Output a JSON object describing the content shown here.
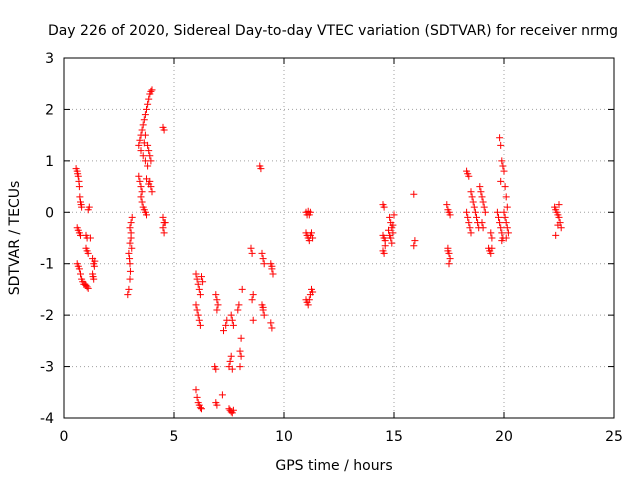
{
  "chart_data": {
    "type": "scatter",
    "title": "Day 226 of 2020, Sidereal Day-to-day VTEC variation (SDTVAR) for receiver nrmg",
    "xlabel": "GPS time / hours",
    "ylabel": "SDTVAR / TECUs",
    "xlim": [
      0,
      25
    ],
    "ylim": [
      -4,
      3
    ],
    "xticks": [
      0,
      5,
      10,
      15,
      20,
      25
    ],
    "yticks": [
      -4,
      -3,
      -2,
      -1,
      0,
      1,
      2,
      3
    ],
    "xtick_labels": [
      "0",
      "5",
      "10",
      "15",
      "20",
      "25"
    ],
    "ytick_labels": [
      "-4",
      "-3",
      "-2",
      "-1",
      "0",
      "1",
      "2",
      "3"
    ],
    "grid": true,
    "marker": "+",
    "color": "#ff0000",
    "series": [
      {
        "name": "SDTVAR",
        "points": [
          [
            0.55,
            0.85
          ],
          [
            0.6,
            0.8
          ],
          [
            0.62,
            0.75
          ],
          [
            0.65,
            0.7
          ],
          [
            0.68,
            0.6
          ],
          [
            0.7,
            0.5
          ],
          [
            0.72,
            0.3
          ],
          [
            0.75,
            0.2
          ],
          [
            0.78,
            0.15
          ],
          [
            0.8,
            0.1
          ],
          [
            0.6,
            -0.3
          ],
          [
            0.65,
            -0.35
          ],
          [
            0.7,
            -0.4
          ],
          [
            0.75,
            -0.45
          ],
          [
            0.6,
            -1.0
          ],
          [
            0.65,
            -1.05
          ],
          [
            0.7,
            -1.1
          ],
          [
            0.75,
            -1.2
          ],
          [
            0.8,
            -1.3
          ],
          [
            0.85,
            -1.35
          ],
          [
            0.9,
            -1.4
          ],
          [
            0.95,
            -1.4
          ],
          [
            1.0,
            -1.42
          ],
          [
            1.05,
            -1.45
          ],
          [
            1.1,
            -1.48
          ],
          [
            1.0,
            -0.7
          ],
          [
            1.05,
            -0.75
          ],
          [
            1.1,
            -0.8
          ],
          [
            1.0,
            -0.45
          ],
          [
            1.05,
            -0.5
          ],
          [
            1.1,
            0.05
          ],
          [
            1.15,
            0.1
          ],
          [
            1.2,
            -0.5
          ],
          [
            1.3,
            -0.9
          ],
          [
            1.35,
            -1.0
          ],
          [
            1.3,
            -1.2
          ],
          [
            1.35,
            -1.3
          ],
          [
            1.4,
            -0.95
          ],
          [
            1.38,
            -1.05
          ],
          [
            1.32,
            -1.25
          ],
          [
            2.9,
            -1.6
          ],
          [
            2.95,
            -1.5
          ],
          [
            3.0,
            -1.3
          ],
          [
            3.0,
            -1.0
          ],
          [
            2.95,
            -0.8
          ],
          [
            3.0,
            -0.6
          ],
          [
            3.05,
            -0.5
          ],
          [
            3.0,
            -0.3
          ],
          [
            3.05,
            -0.2
          ],
          [
            3.1,
            -0.1
          ],
          [
            3.05,
            -0.4
          ],
          [
            2.98,
            -0.9
          ],
          [
            3.08,
            -0.7
          ],
          [
            3.02,
            -1.15
          ],
          [
            3.4,
            0.7
          ],
          [
            3.45,
            0.6
          ],
          [
            3.5,
            0.5
          ],
          [
            3.55,
            0.4
          ],
          [
            3.5,
            0.3
          ],
          [
            3.55,
            0.2
          ],
          [
            3.6,
            0.1
          ],
          [
            3.65,
            0.05
          ],
          [
            3.7,
            0.0
          ],
          [
            3.75,
            -0.05
          ],
          [
            3.4,
            1.3
          ],
          [
            3.45,
            1.4
          ],
          [
            3.5,
            1.5
          ],
          [
            3.55,
            1.6
          ],
          [
            3.6,
            1.7
          ],
          [
            3.65,
            1.8
          ],
          [
            3.5,
            1.2
          ],
          [
            3.6,
            1.1
          ],
          [
            3.7,
            1.0
          ],
          [
            3.8,
            0.9
          ],
          [
            3.75,
            2.0
          ],
          [
            3.8,
            2.1
          ],
          [
            3.85,
            2.2
          ],
          [
            3.9,
            2.3
          ],
          [
            3.95,
            2.35
          ],
          [
            4.0,
            2.38
          ],
          [
            3.7,
            1.9
          ],
          [
            3.8,
            1.3
          ],
          [
            3.85,
            1.2
          ],
          [
            3.9,
            1.1
          ],
          [
            3.95,
            1.0
          ],
          [
            3.9,
            0.6
          ],
          [
            3.95,
            0.5
          ],
          [
            4.0,
            0.4
          ],
          [
            3.85,
            0.55
          ],
          [
            3.75,
            0.65
          ],
          [
            3.7,
            1.5
          ],
          [
            3.65,
            1.35
          ],
          [
            4.5,
            1.65
          ],
          [
            4.55,
            1.6
          ],
          [
            4.5,
            -0.1
          ],
          [
            4.55,
            -0.2
          ],
          [
            4.5,
            -0.3
          ],
          [
            4.55,
            -0.4
          ],
          [
            4.6,
            -0.2
          ],
          [
            6.0,
            -1.2
          ],
          [
            6.05,
            -1.3
          ],
          [
            6.1,
            -1.4
          ],
          [
            6.15,
            -1.5
          ],
          [
            6.2,
            -1.6
          ],
          [
            6.0,
            -1.8
          ],
          [
            6.05,
            -1.9
          ],
          [
            6.1,
            -2.0
          ],
          [
            6.15,
            -2.1
          ],
          [
            6.2,
            -2.2
          ],
          [
            6.25,
            -1.25
          ],
          [
            6.3,
            -1.35
          ],
          [
            6.0,
            -3.45
          ],
          [
            6.05,
            -3.6
          ],
          [
            6.1,
            -3.7
          ],
          [
            6.15,
            -3.75
          ],
          [
            6.2,
            -3.8
          ],
          [
            6.25,
            -3.82
          ],
          [
            6.9,
            -1.6
          ],
          [
            6.95,
            -1.7
          ],
          [
            7.0,
            -1.8
          ],
          [
            6.95,
            -1.9
          ],
          [
            6.85,
            -3.0
          ],
          [
            6.9,
            -3.05
          ],
          [
            6.9,
            -3.7
          ],
          [
            6.95,
            -3.75
          ],
          [
            7.2,
            -3.55
          ],
          [
            7.25,
            -2.3
          ],
          [
            7.35,
            -2.2
          ],
          [
            7.4,
            -2.1
          ],
          [
            7.5,
            -3.0
          ],
          [
            7.55,
            -2.9
          ],
          [
            7.6,
            -2.8
          ],
          [
            7.65,
            -3.05
          ],
          [
            7.5,
            -3.82
          ],
          [
            7.55,
            -3.85
          ],
          [
            7.6,
            -3.88
          ],
          [
            7.65,
            -3.9
          ],
          [
            7.7,
            -3.85
          ],
          [
            7.6,
            -2.0
          ],
          [
            7.65,
            -2.1
          ],
          [
            7.7,
            -2.2
          ],
          [
            7.9,
            -1.9
          ],
          [
            7.95,
            -1.8
          ],
          [
            8.0,
            -2.7
          ],
          [
            8.05,
            -2.8
          ],
          [
            8.0,
            -3.0
          ],
          [
            8.05,
            -2.45
          ],
          [
            8.1,
            -1.5
          ],
          [
            8.5,
            -0.7
          ],
          [
            8.55,
            -0.8
          ],
          [
            8.6,
            -1.6
          ],
          [
            8.55,
            -1.7
          ],
          [
            8.6,
            -2.1
          ],
          [
            8.9,
            0.9
          ],
          [
            8.95,
            0.85
          ],
          [
            9.0,
            -0.8
          ],
          [
            9.05,
            -0.9
          ],
          [
            9.1,
            -1.0
          ],
          [
            9.0,
            -1.8
          ],
          [
            9.05,
            -1.9
          ],
          [
            9.1,
            -2.0
          ],
          [
            9.05,
            -1.85
          ],
          [
            9.4,
            -1.0
          ],
          [
            9.45,
            -1.1
          ],
          [
            9.5,
            -1.2
          ],
          [
            9.4,
            -2.15
          ],
          [
            9.45,
            -2.25
          ],
          [
            9.45,
            -1.05
          ],
          [
            11.0,
            0.0
          ],
          [
            11.05,
            -0.05
          ],
          [
            11.1,
            0.02
          ],
          [
            11.2,
            0.0
          ],
          [
            11.0,
            -0.4
          ],
          [
            11.05,
            -0.45
          ],
          [
            11.1,
            -0.5
          ],
          [
            11.15,
            -0.55
          ],
          [
            11.2,
            -0.45
          ],
          [
            11.25,
            -0.4
          ],
          [
            11.0,
            -1.7
          ],
          [
            11.05,
            -1.75
          ],
          [
            11.1,
            -1.8
          ],
          [
            11.15,
            -1.7
          ],
          [
            11.2,
            -1.6
          ],
          [
            11.25,
            -1.5
          ],
          [
            11.3,
            -1.55
          ],
          [
            11.3,
            -0.5
          ],
          [
            11.15,
            -0.05
          ],
          [
            14.5,
            0.15
          ],
          [
            14.55,
            0.1
          ],
          [
            14.5,
            -0.45
          ],
          [
            14.55,
            -0.5
          ],
          [
            14.6,
            -0.55
          ],
          [
            14.5,
            -0.75
          ],
          [
            14.55,
            -0.8
          ],
          [
            14.6,
            -0.65
          ],
          [
            14.8,
            -0.1
          ],
          [
            14.85,
            -0.2
          ],
          [
            14.9,
            -0.3
          ],
          [
            14.95,
            -0.4
          ],
          [
            14.85,
            -0.5
          ],
          [
            14.9,
            -0.6
          ],
          [
            15.0,
            -0.05
          ],
          [
            14.95,
            -0.25
          ],
          [
            14.75,
            -0.35
          ],
          [
            14.8,
            -0.45
          ],
          [
            15.9,
            0.35
          ],
          [
            15.95,
            -0.55
          ],
          [
            15.9,
            -0.65
          ],
          [
            17.4,
            0.15
          ],
          [
            17.45,
            0.05
          ],
          [
            17.5,
            0.0
          ],
          [
            17.55,
            -0.05
          ],
          [
            17.45,
            -0.7
          ],
          [
            17.5,
            -0.8
          ],
          [
            17.55,
            -0.9
          ],
          [
            17.5,
            -1.0
          ],
          [
            17.45,
            -0.75
          ],
          [
            18.3,
            0.8
          ],
          [
            18.35,
            0.75
          ],
          [
            18.4,
            0.7
          ],
          [
            18.3,
            0.0
          ],
          [
            18.35,
            -0.1
          ],
          [
            18.4,
            -0.2
          ],
          [
            18.45,
            -0.3
          ],
          [
            18.5,
            -0.4
          ],
          [
            18.5,
            0.4
          ],
          [
            18.55,
            0.3
          ],
          [
            18.6,
            0.2
          ],
          [
            18.65,
            0.1
          ],
          [
            18.7,
            0.0
          ],
          [
            18.75,
            -0.1
          ],
          [
            18.8,
            -0.2
          ],
          [
            18.85,
            -0.3
          ],
          [
            18.9,
            0.5
          ],
          [
            18.95,
            0.4
          ],
          [
            19.0,
            0.3
          ],
          [
            19.05,
            0.2
          ],
          [
            19.1,
            0.1
          ],
          [
            19.15,
            0.0
          ],
          [
            19.0,
            -0.2
          ],
          [
            19.05,
            -0.3
          ],
          [
            19.3,
            -0.7
          ],
          [
            19.35,
            -0.75
          ],
          [
            19.4,
            -0.8
          ],
          [
            19.45,
            -0.7
          ],
          [
            19.4,
            -0.4
          ],
          [
            19.45,
            -0.5
          ],
          [
            19.7,
            0.0
          ],
          [
            19.75,
            -0.1
          ],
          [
            19.8,
            -0.2
          ],
          [
            19.85,
            -0.3
          ],
          [
            19.9,
            -0.4
          ],
          [
            19.95,
            -0.5
          ],
          [
            19.8,
            1.45
          ],
          [
            19.85,
            1.3
          ],
          [
            19.9,
            1.0
          ],
          [
            19.95,
            0.9
          ],
          [
            20.0,
            0.8
          ],
          [
            20.05,
            0.5
          ],
          [
            20.1,
            0.3
          ],
          [
            20.15,
            0.1
          ],
          [
            20.0,
            0.0
          ],
          [
            20.05,
            -0.1
          ],
          [
            20.1,
            -0.2
          ],
          [
            20.15,
            -0.3
          ],
          [
            20.2,
            -0.4
          ],
          [
            20.1,
            -0.5
          ],
          [
            19.9,
            -0.55
          ],
          [
            19.85,
            0.6
          ],
          [
            22.3,
            0.1
          ],
          [
            22.35,
            0.05
          ],
          [
            22.4,
            0.0
          ],
          [
            22.45,
            -0.05
          ],
          [
            22.5,
            -0.1
          ],
          [
            22.55,
            -0.2
          ],
          [
            22.6,
            -0.3
          ],
          [
            22.35,
            -0.45
          ],
          [
            22.5,
            0.15
          ],
          [
            22.45,
            -0.25
          ]
        ]
      }
    ]
  }
}
